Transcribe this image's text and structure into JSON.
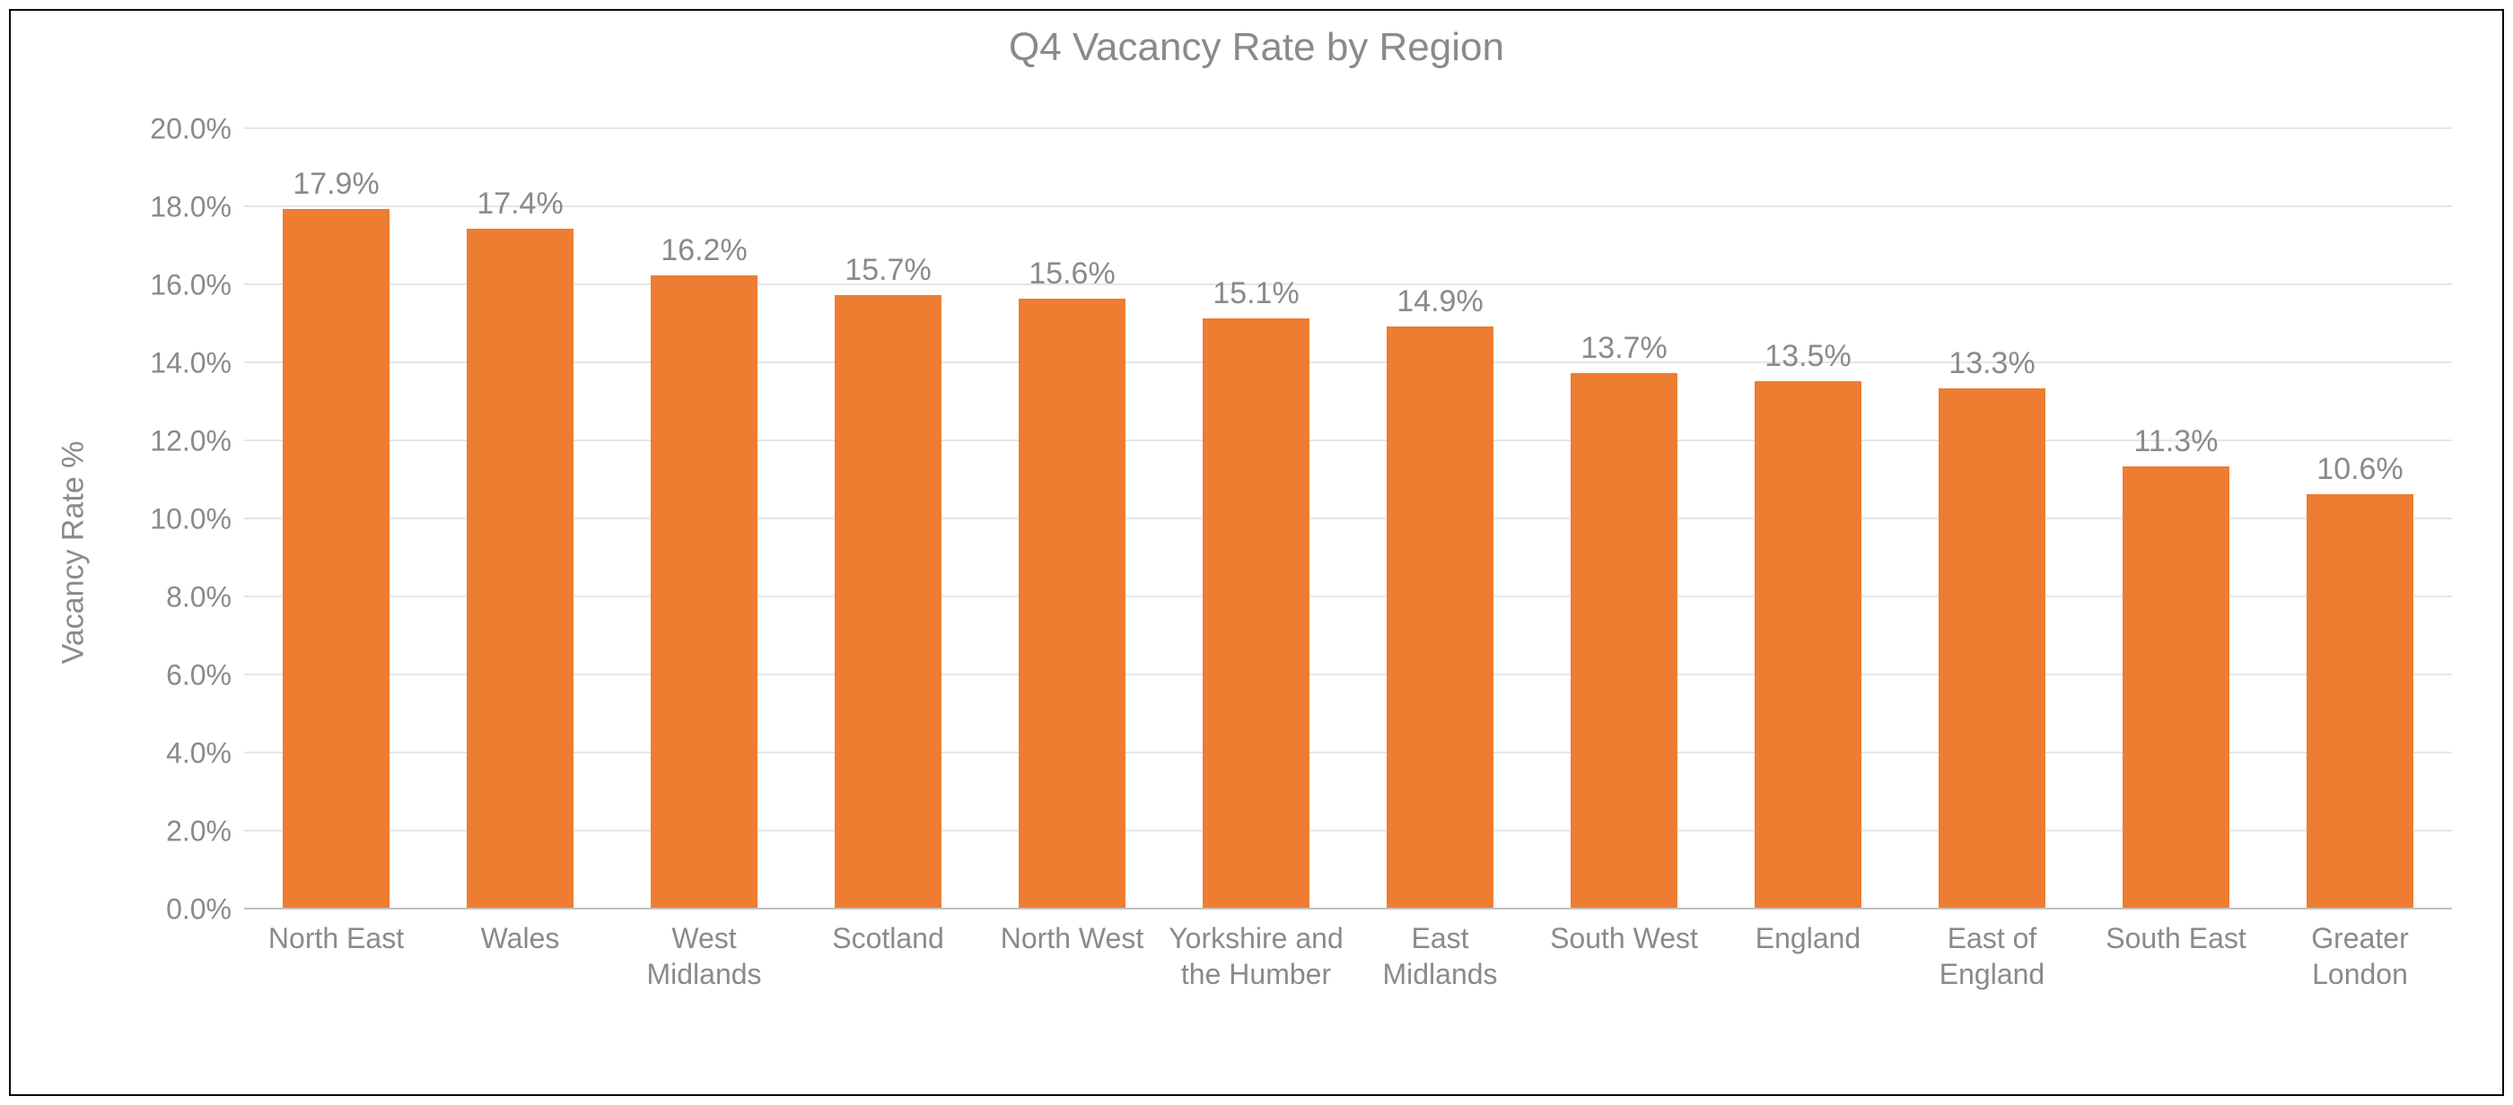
{
  "chart": {
    "type": "bar",
    "title": "Q4 Vacancy Rate by Region",
    "title_fontsize": 44,
    "title_color": "#8a8a8a",
    "frame_border_color": "#000000",
    "background_color": "#ffffff",
    "font_family": "Helvetica Neue",
    "y_axis": {
      "title": "Vacancy Rate %",
      "title_fontsize": 34,
      "min": 0.0,
      "max": 20.0,
      "tick_step": 2.0,
      "ticks": [
        "0.0%",
        "2.0%",
        "4.0%",
        "6.0%",
        "8.0%",
        "10.0%",
        "12.0%",
        "14.0%",
        "16.0%",
        "18.0%",
        "20.0%"
      ],
      "tick_fontsize": 32,
      "label_color": "#8a8a8a",
      "gridline_color": "#e6e6e6",
      "baseline_color": "#c2c2c2"
    },
    "bars": {
      "color": "#ed7d31",
      "width_fraction": 0.58,
      "value_label_fontsize": 34,
      "value_label_color": "#8a8a8a",
      "x_label_fontsize": 32,
      "x_label_color": "#8a8a8a"
    },
    "categories": [
      {
        "label": "North East",
        "value": 17.9,
        "display": "17.9%"
      },
      {
        "label": "Wales",
        "value": 17.4,
        "display": "17.4%"
      },
      {
        "label": "West Midlands",
        "value": 16.2,
        "display": "16.2%"
      },
      {
        "label": "Scotland",
        "value": 15.7,
        "display": "15.7%"
      },
      {
        "label": "North West",
        "value": 15.6,
        "display": "15.6%"
      },
      {
        "label": "Yorkshire and the Humber",
        "value": 15.1,
        "display": "15.1%"
      },
      {
        "label": "East Midlands",
        "value": 14.9,
        "display": "14.9%"
      },
      {
        "label": "South West",
        "value": 13.7,
        "display": "13.7%"
      },
      {
        "label": "England",
        "value": 13.5,
        "display": "13.5%"
      },
      {
        "label": "East of England",
        "value": 13.3,
        "display": "13.3%"
      },
      {
        "label": "South East",
        "value": 11.3,
        "display": "11.3%"
      },
      {
        "label": "Greater London",
        "value": 10.6,
        "display": "10.6%"
      }
    ]
  }
}
